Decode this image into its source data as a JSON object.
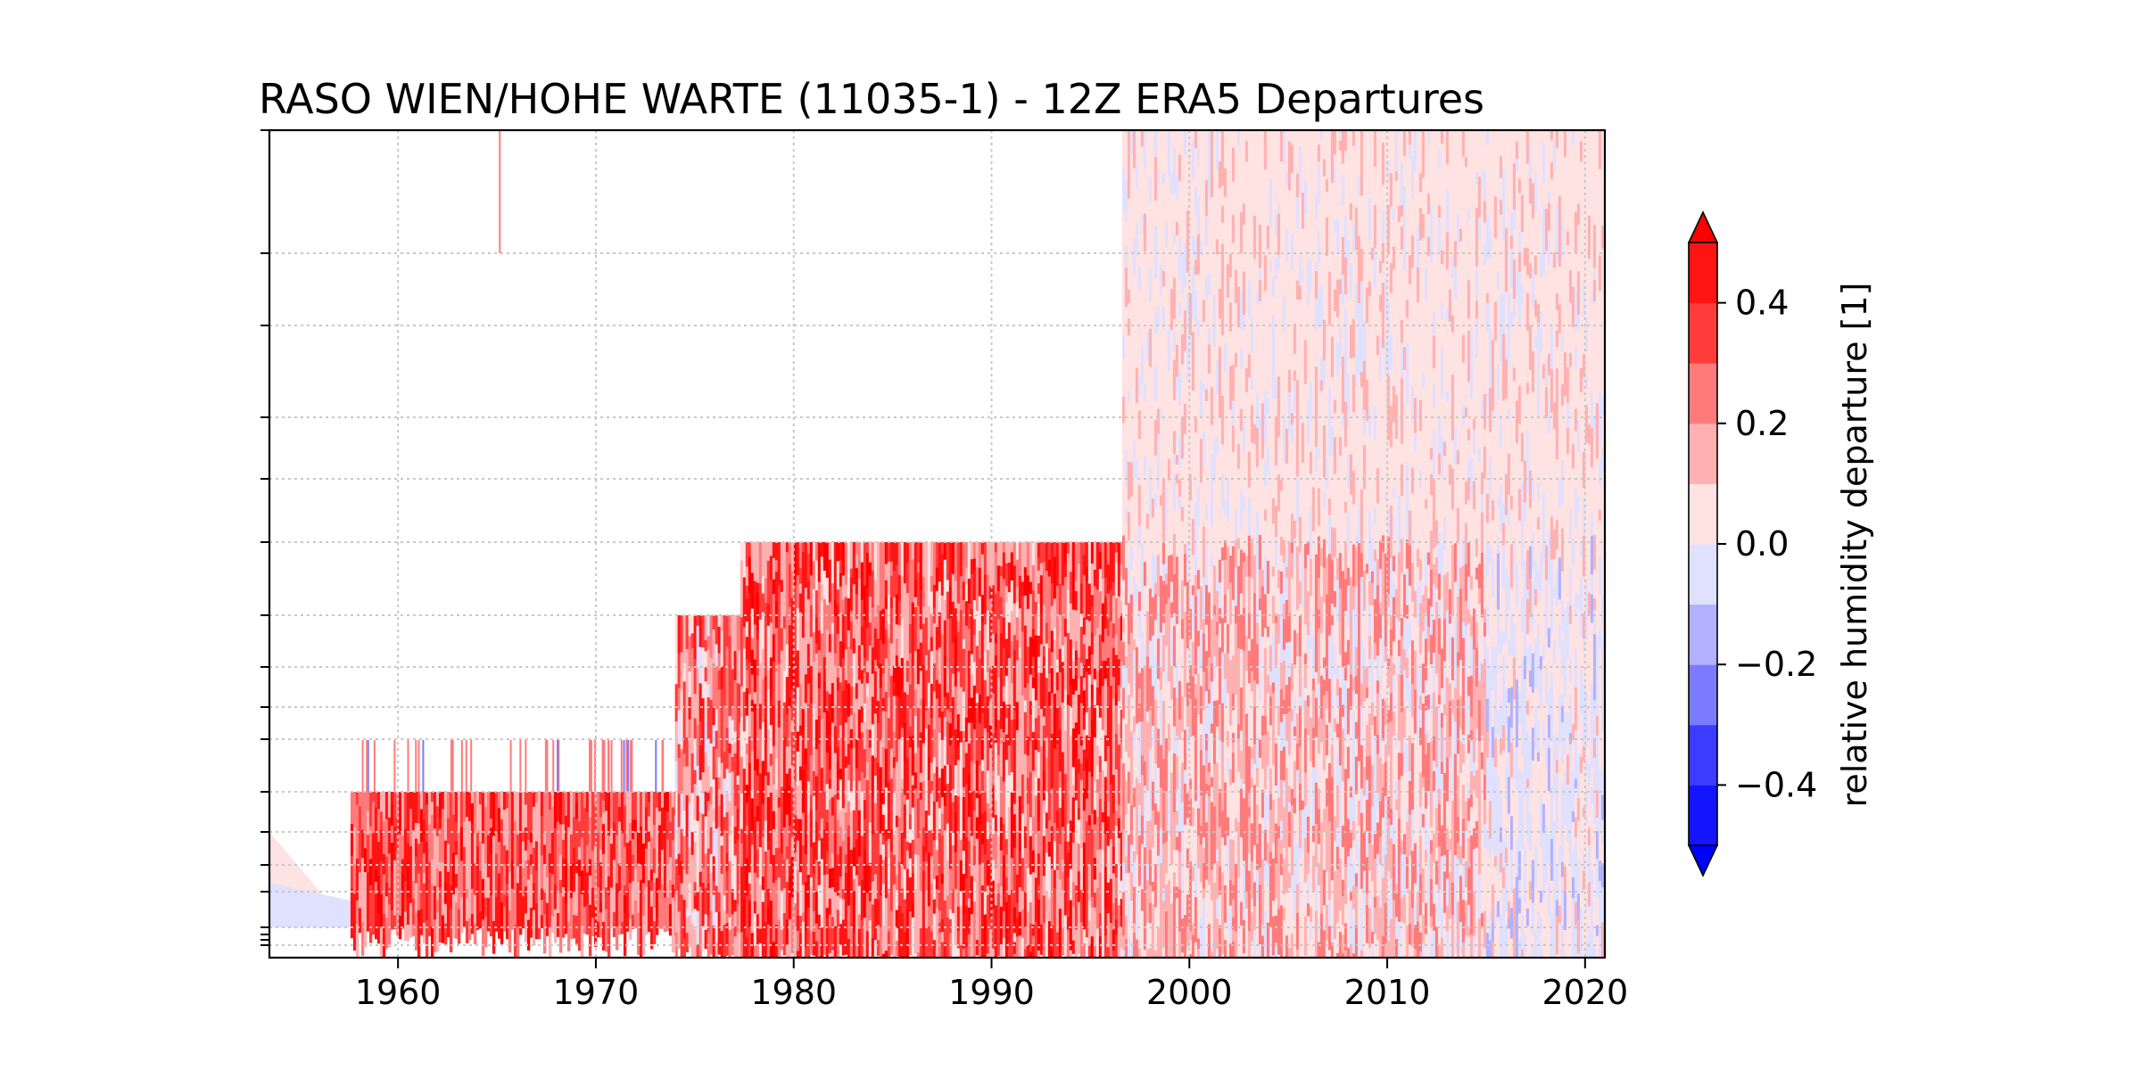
{
  "chart_data": {
    "type": "heatmap",
    "title": "RASO WIEN/HOHE WARTE (11035-1) - 12Z ERA5 Departures",
    "xlabel": "",
    "ylabel": "",
    "x_ticks": [
      1960,
      1970,
      1980,
      1990,
      2000,
      2010,
      2020
    ],
    "x_tick_labels": [
      "1960",
      "1970",
      "1980",
      "1990",
      "2000",
      "2010",
      "2020"
    ],
    "xlim": [
      1953.5,
      2021
    ],
    "y_ticks": [],
    "grid": true,
    "colorbar": {
      "label": "relative humidity departure [1]",
      "ticks": [
        -0.4,
        -0.2,
        0.0,
        0.2,
        0.4
      ],
      "tick_labels": [
        "−0.4",
        "−0.2",
        "0.0",
        "0.2",
        "0.4"
      ],
      "range": [
        -0.5,
        0.5
      ],
      "step": 0.1,
      "extend": "both",
      "colors": [
        "#1414ff",
        "#3c3cff",
        "#7b7bff",
        "#b1b1ff",
        "#e0e0ff",
        "#ffe2e2",
        "#ffb1b1",
        "#ff7b7b",
        "#ff3c3c",
        "#ff1414"
      ],
      "under_color": "#0000ff",
      "over_color": "#ff0000"
    },
    "regions": [
      {
        "period": [
          1953.5,
          1957.6
        ],
        "description_level": "lowest",
        "value": 0.05
      },
      {
        "period": [
          1957.6,
          1974.0
        ],
        "value": 0.3
      },
      {
        "period": [
          1974.0,
          1977.3
        ],
        "value": 0.2
      },
      {
        "period": [
          1977.3,
          1996.6
        ],
        "value": 0.3
      },
      {
        "period": [
          1996.6,
          2015.0
        ],
        "value": 0.15
      },
      {
        "period": [
          2015.0,
          2021.0
        ],
        "value": 0.0
      }
    ]
  }
}
